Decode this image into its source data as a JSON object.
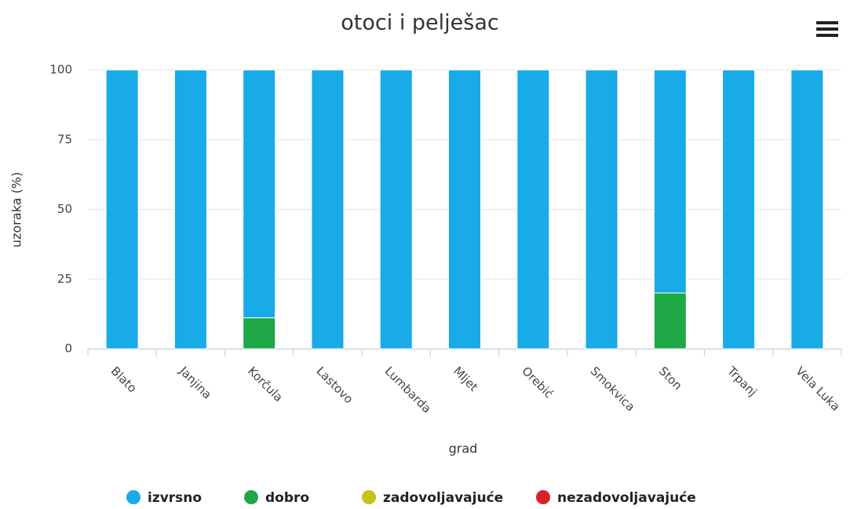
{
  "chart_data": {
    "type": "stacked_bar",
    "title": "otoci i pelješac",
    "x_label": "grad",
    "y_label": "uzoraka (%)",
    "categories": [
      "Blato",
      "Janjina",
      "Korčula",
      "Lastovo",
      "Lumbarda",
      "Mljet",
      "Orebić",
      "Smokvica",
      "Ston",
      "Trpanj",
      "Vela Luka"
    ],
    "series": [
      {
        "name": "izvrsno",
        "color": "#19aae8",
        "values": [
          100,
          100,
          88.9,
          100,
          100,
          100,
          100,
          100,
          80,
          100,
          100
        ]
      },
      {
        "name": "dobro",
        "color": "#1ea845",
        "values": [
          0,
          0,
          11.1,
          0,
          0,
          0,
          0,
          0,
          20,
          0,
          0
        ]
      },
      {
        "name": "zadovoljavajuće",
        "color": "#c5c21c",
        "values": [
          0,
          0,
          0,
          0,
          0,
          0,
          0,
          0,
          0,
          0,
          0
        ]
      },
      {
        "name": "nezadovoljavajuće",
        "color": "#d5232a",
        "values": [
          0,
          0,
          0,
          0,
          0,
          0,
          0,
          0,
          0,
          0,
          0
        ]
      }
    ],
    "ylim": [
      0,
      100
    ],
    "yticks": [
      0,
      25,
      50,
      75,
      100
    ],
    "grid": true,
    "legend": "bottom"
  }
}
